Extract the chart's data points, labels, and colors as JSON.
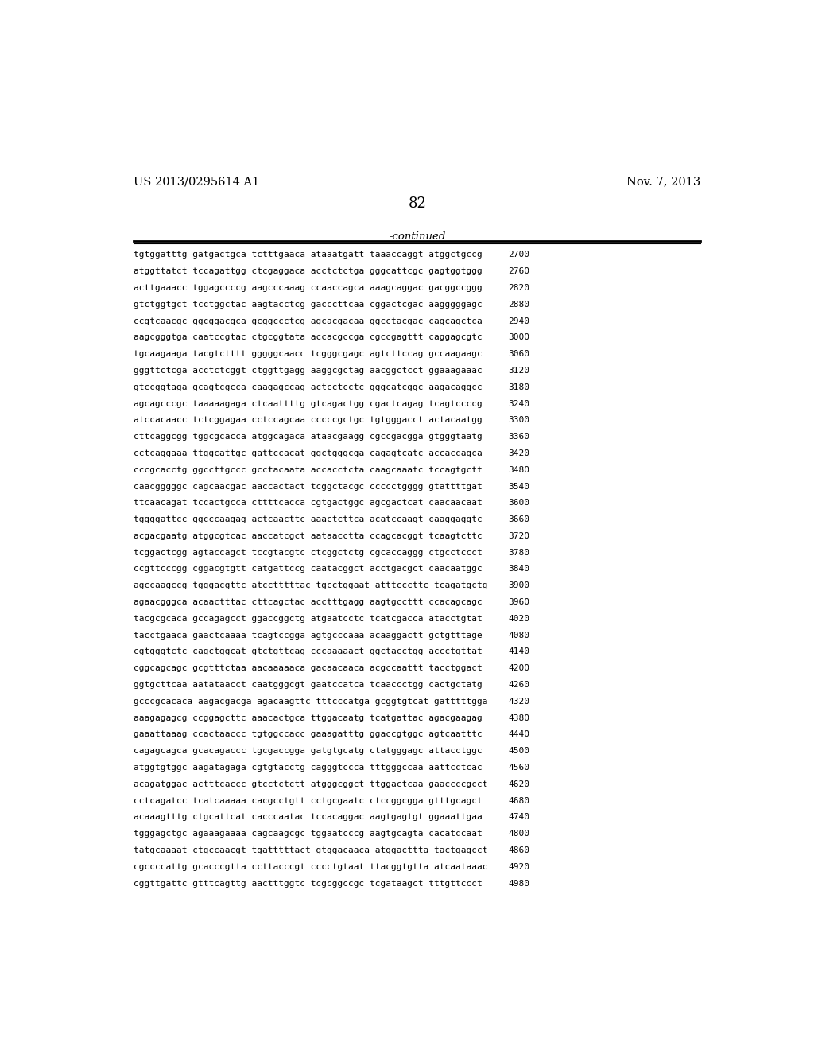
{
  "header_left": "US 2013/0295614 A1",
  "header_right": "Nov. 7, 2013",
  "page_number": "82",
  "continued_label": "-continued",
  "background_color": "#ffffff",
  "text_color": "#000000",
  "sequences": [
    [
      "tgtggatttg gatgactgca tctttgaaca ataaatgatt taaaccaggt atggctgccg",
      "2700"
    ],
    [
      "atggttatct tccagattgg ctcgaggaca acctctctga gggcattcgc gagtggtggg",
      "2760"
    ],
    [
      "acttgaaacc tggagccccg aagcccaaag ccaaccagca aaagcaggac gacggccggg",
      "2820"
    ],
    [
      "gtctggtgct tcctggctac aagtacctcg gacccttcaa cggactcgac aagggggagc",
      "2880"
    ],
    [
      "ccgtcaacgc ggcggacgca gcggccctcg agcacgacaa ggcctacgac cagcagctca",
      "2940"
    ],
    [
      "aagcgggtga caatccgtac ctgcggtata accacgccga cgccgagttt caggagcgtc",
      "3000"
    ],
    [
      "tgcaagaaga tacgtctttt gggggcaacc tcgggcgagc agtcttccag gccaagaagc",
      "3060"
    ],
    [
      "gggttctcga acctctcggt ctggttgagg aaggcgctag aacggctcct ggaaagaaac",
      "3120"
    ],
    [
      "gtccggtaga gcagtcgcca caagagccag actcctcctc gggcatcggc aagacaggcc",
      "3180"
    ],
    [
      "agcagcccgc taaaaagaga ctcaattttg gtcagactgg cgactcagag tcagtccccg",
      "3240"
    ],
    [
      "atccacaacc tctcggagaa cctccagcaa cccccgctgc tgtgggacct actacaatgg",
      "3300"
    ],
    [
      "cttcaggcgg tggcgcacca atggcagaca ataacgaagg cgccgacgga gtgggtaatg",
      "3360"
    ],
    [
      "cctcaggaaa ttggcattgc gattccacat ggctgggcga cagagtcatc accaccagca",
      "3420"
    ],
    [
      "cccgcacctg ggccttgccc gcctacaata accacctcta caagcaaatc tccagtgctt",
      "3480"
    ],
    [
      "caacgggggc cagcaacgac aaccactact tcggctacgc ccccctgggg gtattttgat",
      "3540"
    ],
    [
      "ttcaacagat tccactgcca cttttcacca cgtgactggc agcgactcat caacaacaat",
      "3600"
    ],
    [
      "tggggattcc ggcccaagag actcaacttc aaactcttca acatccaagt caaggaggtc",
      "3660"
    ],
    [
      "acgacgaatg atggcgtcac aaccatcgct aataacctta ccagcacggt tcaagtcttc",
      "3720"
    ],
    [
      "tcggactcgg agtaccagct tccgtacgtc ctcggctctg cgcaccaggg ctgcctccct",
      "3780"
    ],
    [
      "ccgttcccgg cggacgtgtt catgattccg caatacggct acctgacgct caacaatggc",
      "3840"
    ],
    [
      "agccaagccg tgggacgttc atcctttttac tgcctggaat atttcccttc tcagatgctg",
      "3900"
    ],
    [
      "agaacgggca acaactttac cttcagctac acctttgagg aagtgccttt ccacagcagc",
      "3960"
    ],
    [
      "tacgcgcaca gccagagcct ggaccggctg atgaatcctc tcatcgacca atacctgtat",
      "4020"
    ],
    [
      "tacctgaaca gaactcaaaa tcagtccgga agtgcccaaa acaaggactt gctgtttage",
      "4080"
    ],
    [
      "cgtgggtctc cagctggcat gtctgttcag cccaaaaact ggctacctgg accctgttat",
      "4140"
    ],
    [
      "cggcagcagc gcgtttctaa aacaaaaaca gacaacaaca acgccaattt tacctggact",
      "4200"
    ],
    [
      "ggtgcttcaa aatataacct caatgggcgt gaatccatca tcaaccctgg cactgctatg",
      "4260"
    ],
    [
      "gcccgcacaca aagacgacga agacaagttc tttcccatga gcggtgtcat gatttttgga",
      "4320"
    ],
    [
      "aaagagagcg ccggagcttc aaacactgca ttggacaatg tcatgattac agacgaagag",
      "4380"
    ],
    [
      "gaaattaaag ccactaaccc tgtggccacc gaaagatttg ggaccgtggc agtcaatttc",
      "4440"
    ],
    [
      "cagagcagca gcacagaccc tgcgaccgga gatgtgcatg ctatgggagc attacctggc",
      "4500"
    ],
    [
      "atggtgtggc aagatagaga cgtgtacctg cagggtccca tttgggccaa aattcctcac",
      "4560"
    ],
    [
      "acagatggac actttcaccc gtcctctctt atgggcggct ttggactcaa gaaccccgcct",
      "4620"
    ],
    [
      "cctcagatcc tcatcaaaaa cacgcctgtt cctgcgaatc ctccggcgga gtttgcagct",
      "4680"
    ],
    [
      "acaaagtttg ctgcattcat cacccaatac tccacaggac aagtgagtgt ggaaattgaa",
      "4740"
    ],
    [
      "tgggagctgc agaaagaaaa cagcaagcgc tggaatcccg aagtgcagta cacatccaat",
      "4800"
    ],
    [
      "tatgcaaaat ctgccaacgt tgatttttact gtggacaaca atggacttta tactgagcct",
      "4860"
    ],
    [
      "cgccccattg gcacccgtta ccttacccgt cccctgtaat ttacggtgtta atcaataaac",
      "4920"
    ],
    [
      "cggttgattc gtttcagttg aactttggtc tcgcggccgc tcgataagct tttgttccct",
      "4980"
    ]
  ]
}
